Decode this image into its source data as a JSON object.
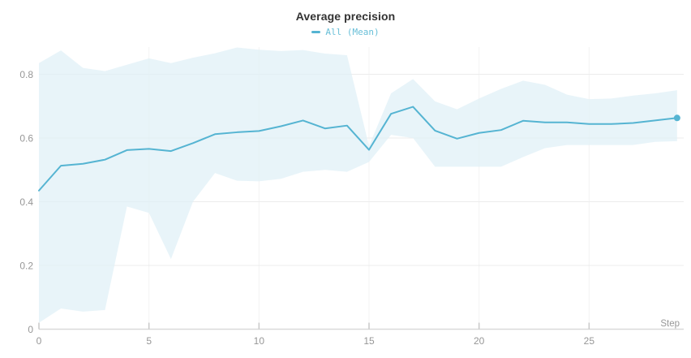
{
  "header": {
    "title": "Average precision",
    "legend_label": "All (Mean)"
  },
  "colors": {
    "accent": "#55b4d2",
    "band": "#dff0f6",
    "grid_h": "#ececec",
    "grid_v": "#f3f3f3",
    "axis": "#d9d9d9",
    "tick": "#c9c9c9",
    "label": "#979797",
    "title_color": "#333333"
  },
  "chart_data": {
    "type": "line",
    "title": "Average precision",
    "xlabel": "Step",
    "ylabel": "",
    "grid": true,
    "legend_position": "top-center",
    "x_ticks": [
      0,
      5,
      10,
      15,
      20,
      25
    ],
    "y_ticks": [
      "0",
      "0.2",
      "0.4",
      "0.6",
      "0.8"
    ],
    "y_tick_values": [
      0,
      0.2,
      0.4,
      0.6,
      0.8
    ],
    "xlim": [
      0,
      29.3
    ],
    "ylim": [
      0,
      0.9
    ],
    "series": [
      {
        "name": "All (Mean)",
        "x": [
          0,
          1,
          2,
          3,
          4,
          5,
          6,
          7,
          8,
          9,
          10,
          11,
          12,
          13,
          14,
          15,
          16,
          17,
          18,
          19,
          20,
          21,
          22,
          23,
          24,
          25,
          26,
          27,
          28,
          29
        ],
        "mean": [
          0.435,
          0.513,
          0.519,
          0.532,
          0.562,
          0.566,
          0.559,
          0.584,
          0.612,
          0.618,
          0.622,
          0.637,
          0.655,
          0.63,
          0.639,
          0.563,
          0.676,
          0.698,
          0.623,
          0.598,
          0.616,
          0.625,
          0.654,
          0.649,
          0.649,
          0.644,
          0.644,
          0.647,
          0.655,
          0.663
        ],
        "upper": [
          0.835,
          0.875,
          0.82,
          0.81,
          0.83,
          0.85,
          0.835,
          0.852,
          0.866,
          0.884,
          0.877,
          0.873,
          0.876,
          0.865,
          0.86,
          0.575,
          0.74,
          0.785,
          0.715,
          0.69,
          0.724,
          0.754,
          0.78,
          0.767,
          0.736,
          0.722,
          0.724,
          0.733,
          0.74,
          0.75
        ],
        "lower": [
          0.02,
          0.065,
          0.055,
          0.06,
          0.385,
          0.365,
          0.22,
          0.4,
          0.49,
          0.466,
          0.464,
          0.472,
          0.494,
          0.5,
          0.494,
          0.525,
          0.61,
          0.6,
          0.51,
          0.51,
          0.51,
          0.51,
          0.54,
          0.568,
          0.578,
          0.578,
          0.578,
          0.578,
          0.588,
          0.59
        ]
      }
    ]
  }
}
